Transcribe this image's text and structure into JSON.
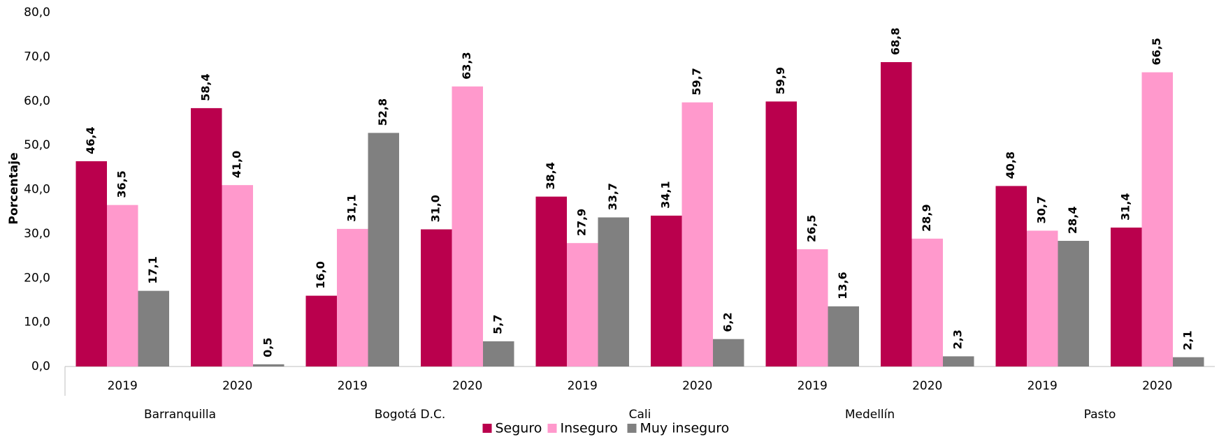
{
  "chart_data": {
    "type": "bar",
    "ylabel": "Porcentaje",
    "categories": [
      "2019",
      "2020",
      "2019",
      "2020",
      "2019",
      "2020",
      "2019",
      "2020",
      "2019",
      "2020"
    ],
    "groups": [
      "Barranquilla",
      "Bogotá D.C.",
      "Cali",
      "Medellín",
      "Pasto"
    ],
    "series": [
      {
        "name": "Seguro",
        "color": "#ba004d",
        "values": [
          46.4,
          58.4,
          16.0,
          31.0,
          38.4,
          34.1,
          59.9,
          68.8,
          40.8,
          31.4
        ],
        "value_labels": [
          "46,4",
          "58,4",
          "16,0",
          "31,0",
          "38,4",
          "34,1",
          "59,9",
          "68,8",
          "40,8",
          "31,4"
        ]
      },
      {
        "name": "Inseguro",
        "color": "#ff99cc",
        "values": [
          36.5,
          41.0,
          31.1,
          63.3,
          27.9,
          59.7,
          26.5,
          28.9,
          30.7,
          66.5
        ],
        "value_labels": [
          "36,5",
          "41,0",
          "31,1",
          "63,3",
          "27,9",
          "59,7",
          "26,5",
          "28,9",
          "30,7",
          "66,5"
        ]
      },
      {
        "name": "Muy inseguro",
        "color": "#808080",
        "values": [
          17.1,
          0.5,
          52.8,
          5.7,
          33.7,
          6.2,
          13.6,
          2.3,
          28.4,
          2.1
        ],
        "value_labels": [
          "17,1",
          "0,5",
          "52,8",
          "5,7",
          "33,7",
          "6,2",
          "13,6",
          "2,3",
          "28,4",
          "2,1"
        ]
      }
    ],
    "ylim": [
      0,
      80
    ],
    "yticks": [
      {
        "value": 0,
        "label": "0,0"
      },
      {
        "value": 10,
        "label": "10,0"
      },
      {
        "value": 20,
        "label": "20,0"
      },
      {
        "value": 30,
        "label": "30,0"
      },
      {
        "value": 40,
        "label": "40,0"
      },
      {
        "value": 50,
        "label": "50,0"
      },
      {
        "value": 60,
        "label": "60,0"
      },
      {
        "value": 70,
        "label": "70,0"
      },
      {
        "value": 80,
        "label": "80,0"
      }
    ],
    "grid": false,
    "legend": "bottom"
  }
}
